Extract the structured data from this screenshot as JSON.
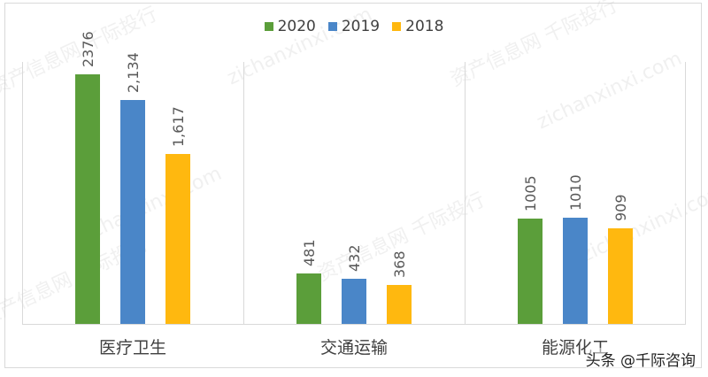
{
  "chart_data": {
    "type": "bar",
    "title": "",
    "xlabel": "",
    "ylabel": "",
    "ylim": [
      0,
      2500
    ],
    "grid": false,
    "legend_position": "top",
    "categories": [
      "医疗卫生",
      "交通运输",
      "能源化工"
    ],
    "series": [
      {
        "name": "2020",
        "color": "#5b9e3a",
        "values": [
          2376,
          481,
          1005
        ],
        "labels": [
          "2376",
          "481",
          "1005"
        ]
      },
      {
        "name": "2019",
        "color": "#4a86c8",
        "values": [
          2134,
          432,
          1010
        ],
        "labels": [
          "2,134",
          "432",
          "1010"
        ]
      },
      {
        "name": "2018",
        "color": "#ffb80f",
        "values": [
          1617,
          368,
          909
        ],
        "labels": [
          "1,617",
          "368",
          "909"
        ]
      }
    ]
  },
  "legend": [
    "2020",
    "2019",
    "2018"
  ],
  "watermark": {
    "cn": "资产信息网 千际投行",
    "url": "zichanxinxi.com",
    "credit": "头条 @千际咨询"
  }
}
